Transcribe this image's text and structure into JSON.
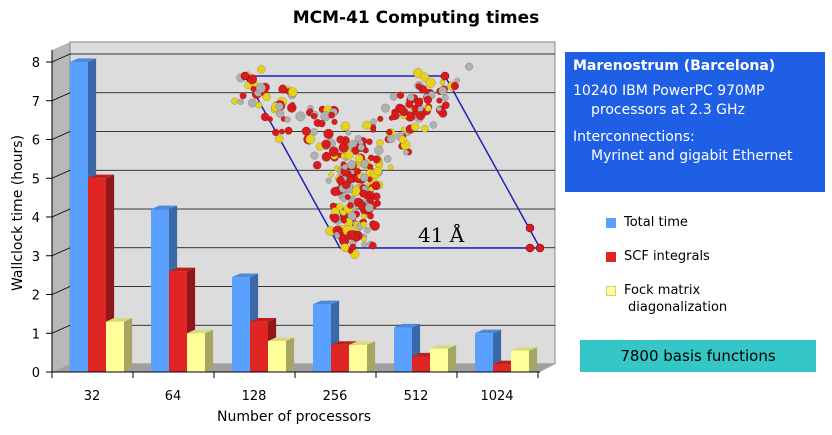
{
  "chart_data": {
    "type": "bar",
    "title": "MCM-41 Computing times",
    "xlabel": "Number of processors",
    "ylabel": "Wallclock time (hours)",
    "categories": [
      "32",
      "64",
      "128",
      "256",
      "512",
      "1024"
    ],
    "series": [
      {
        "name": "Total time",
        "color": "#5aa0ff",
        "values": [
          8.0,
          4.2,
          2.45,
          1.75,
          1.15,
          1.0
        ]
      },
      {
        "name": "SCF integrals",
        "color": "#e02525",
        "values": [
          5.0,
          2.6,
          1.3,
          0.7,
          0.4,
          0.2
        ]
      },
      {
        "name": "Fock matrix diagonalization",
        "color": "#ffff99",
        "values": [
          1.3,
          1.0,
          0.8,
          0.7,
          0.6,
          0.55
        ]
      }
    ],
    "ylim": [
      0,
      8
    ],
    "yticks": [
      "0",
      "1",
      "2",
      "3",
      "4",
      "5",
      "6",
      "7",
      "8"
    ],
    "grid": true,
    "legend_position": "right",
    "annotation": "41 Å"
  },
  "info": {
    "heading": "Marenostrum (Barcelona)",
    "line1": "10240 IBM PowerPC 970MP",
    "line2": "processors at 2.3 GHz",
    "line3": "Interconnections:",
    "line4": "Myrinet and gigabit Ethernet"
  },
  "legend": {
    "item1": "Total time",
    "item2": "SCF integrals",
    "item3a": "Fock matrix",
    "item3b": "diagonalization"
  },
  "basis": "7800 basis functions",
  "colors": {
    "plot_bg": "#dcdcdc",
    "wall_side": "#b8b8b8",
    "floor": "#a0a0a0",
    "info_bg": "#1f5fe6",
    "basis_bg": "#35c7c7",
    "cell_outline": "#2020c0",
    "atom_red": "#d81c1c",
    "atom_yellow": "#e6d21e",
    "atom_gray": "#b0b0b0"
  }
}
